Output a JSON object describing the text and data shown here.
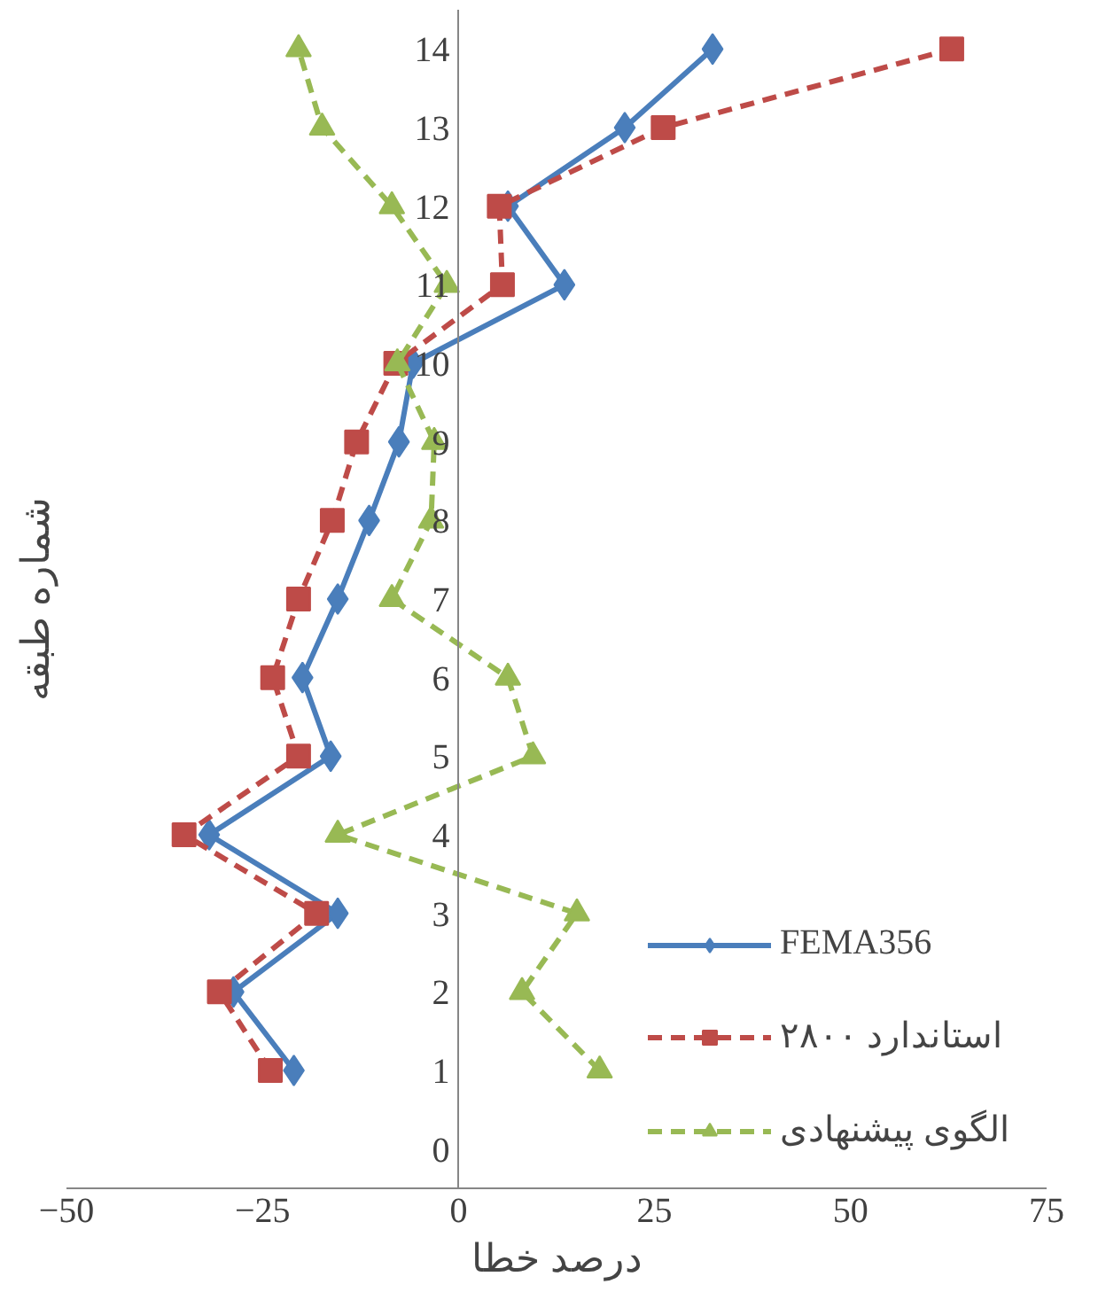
{
  "chart_data": {
    "type": "line",
    "xlabel": "درصد خطا",
    "ylabel": "شماره طبقه",
    "xlim": [
      -50,
      75
    ],
    "xticks": [
      -50,
      -25,
      0,
      25,
      50,
      75
    ],
    "ylim": [
      -0.5,
      14.5
    ],
    "yticks": [
      0,
      1,
      2,
      3,
      4,
      5,
      6,
      7,
      8,
      9,
      10,
      11,
      12,
      13,
      14
    ],
    "grid": false,
    "legend": "bottom right",
    "series": [
      {
        "name": "FEMA356",
        "color": "#4a7ebb",
        "marker": "diamond",
        "line_style": "solid",
        "x": [
          -21,
          -28.7,
          -15.4,
          -31.8,
          -16.3,
          -19.9,
          -15.4,
          -11.4,
          -7.6,
          -5.8,
          13.5,
          6.3,
          21.2,
          32.4
        ],
        "values": [
          1,
          2,
          3,
          4,
          5,
          6,
          7,
          8,
          9,
          10,
          11,
          12,
          13,
          14
        ]
      },
      {
        "name": "استاندارد ۲۸۰۰",
        "color": "#be4b48",
        "marker": "square",
        "line_style": "dashed",
        "x": [
          -24,
          -30.5,
          -18.1,
          -35,
          -20.4,
          -23.7,
          -20.4,
          -16.1,
          -13,
          -8,
          5.6,
          5.2,
          26.1,
          62.9
        ],
        "values": [
          1,
          2,
          3,
          4,
          5,
          6,
          7,
          8,
          9,
          10,
          11,
          12,
          13,
          14
        ]
      },
      {
        "name": "الگوی پیشنهادی",
        "color": "#98b954",
        "marker": "triangle",
        "line_style": "dashed",
        "x": [
          18,
          8.1,
          15.1,
          -15.4,
          9.5,
          6.3,
          -8.5,
          -3.5,
          -3.1,
          -7.8,
          -1.5,
          -8.5,
          -17.4,
          -20.4
        ],
        "values": [
          1,
          2,
          3,
          4,
          5,
          6,
          7,
          8,
          9,
          10,
          11,
          12,
          13,
          14
        ]
      }
    ]
  }
}
